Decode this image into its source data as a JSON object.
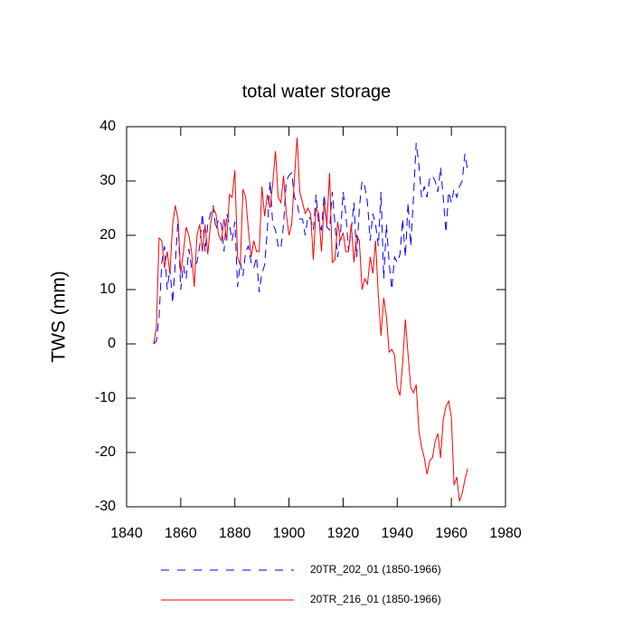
{
  "chart_data": {
    "type": "line",
    "title": "total water storage",
    "y_label": "TWS  (mm)",
    "x": [
      1850,
      1851,
      1852,
      1853,
      1854,
      1855,
      1856,
      1857,
      1858,
      1859,
      1860,
      1861,
      1862,
      1863,
      1864,
      1865,
      1866,
      1867,
      1868,
      1869,
      1870,
      1871,
      1872,
      1873,
      1874,
      1875,
      1876,
      1877,
      1878,
      1879,
      1880,
      1881,
      1882,
      1883,
      1884,
      1885,
      1886,
      1887,
      1888,
      1889,
      1890,
      1891,
      1892,
      1893,
      1894,
      1895,
      1896,
      1897,
      1898,
      1899,
      1900,
      1901,
      1902,
      1903,
      1904,
      1905,
      1906,
      1907,
      1908,
      1909,
      1910,
      1911,
      1912,
      1913,
      1914,
      1915,
      1916,
      1917,
      1918,
      1919,
      1920,
      1921,
      1922,
      1923,
      1924,
      1925,
      1926,
      1927,
      1928,
      1929,
      1930,
      1931,
      1932,
      1933,
      1934,
      1935,
      1936,
      1937,
      1938,
      1939,
      1940,
      1941,
      1942,
      1943,
      1944,
      1945,
      1946,
      1947,
      1948,
      1949,
      1950,
      1951,
      1952,
      1953,
      1954,
      1955,
      1956,
      1957,
      1958,
      1959,
      1960,
      1961,
      1962,
      1963,
      1964,
      1965,
      1966
    ],
    "series": [
      {
        "name": "20TR_202_01 (1850-1966)",
        "color": "#0000ff",
        "dash": true,
        "values": [
          0,
          0.5,
          5,
          15,
          18,
          10,
          14,
          7.5,
          15,
          23,
          10,
          14.5,
          12,
          17.5,
          14,
          14.5,
          15,
          18,
          24,
          17,
          22,
          24,
          25.5,
          21,
          23,
          22,
          17,
          24,
          22,
          19,
          22.5,
          10.5,
          15,
          12.5,
          17,
          18,
          15,
          14,
          16,
          9.5,
          13,
          14.5,
          21,
          30,
          22,
          21,
          18,
          17.5,
          22,
          30,
          31,
          31.5,
          27,
          26,
          23,
          23,
          20,
          23.5,
          23,
          21,
          27.5,
          22,
          21,
          27.5,
          21.5,
          21,
          28,
          22,
          16,
          20,
          28,
          24,
          17,
          21,
          26,
          16,
          25,
          30,
          29,
          26,
          19,
          24,
          22,
          18,
          28,
          12,
          22,
          15,
          10,
          16,
          15,
          16.5,
          23,
          16,
          26,
          18,
          27,
          37,
          33,
          27,
          29,
          27,
          30.5,
          31,
          30,
          28,
          32.5,
          27,
          20.5,
          28,
          26,
          28.5,
          27,
          29,
          30,
          35,
          32
        ]
      },
      {
        "name": "20TR_216_01 (1850-1966)",
        "color": "#ff0000",
        "dash": false,
        "values": [
          0,
          3,
          19.5,
          19,
          14,
          17,
          13,
          22,
          25.5,
          23,
          13,
          17,
          21.5,
          20,
          17,
          10.5,
          20,
          22,
          17,
          22,
          16.5,
          22,
          25,
          24,
          20,
          19,
          23,
          19,
          27.5,
          27,
          32,
          16,
          14.5,
          28.5,
          27,
          21,
          16,
          19,
          17,
          17,
          29,
          23.5,
          27.5,
          25,
          29.5,
          35.5,
          27,
          26,
          31,
          24,
          20,
          22,
          30.5,
          38,
          28,
          26,
          24,
          25,
          24,
          15.5,
          25,
          24,
          17,
          26,
          22,
          31.5,
          15,
          15.5,
          22.5,
          19,
          20.5,
          17,
          17,
          22,
          15,
          20,
          19,
          10,
          12,
          11,
          16,
          13,
          19,
          9,
          1.5,
          8.5,
          5,
          -1.5,
          -1,
          -2,
          -8,
          -9.5,
          -3.5,
          4.5,
          -2,
          -8,
          -9,
          -7.5,
          -16,
          -19,
          -21,
          -24,
          -21.5,
          -21,
          -18,
          -16.5,
          -21,
          -14,
          -11.5,
          -10.5,
          -13.5,
          -26,
          -24.5,
          -29,
          -27.5,
          -25,
          -23
        ]
      }
    ],
    "xlim": [
      1840,
      1980
    ],
    "xticks": [
      1840,
      1860,
      1880,
      1900,
      1920,
      1940,
      1960,
      1980
    ],
    "ylim": [
      -30,
      40
    ],
    "yticks": [
      -30,
      -20,
      -10,
      0,
      10,
      20,
      30,
      40
    ]
  }
}
